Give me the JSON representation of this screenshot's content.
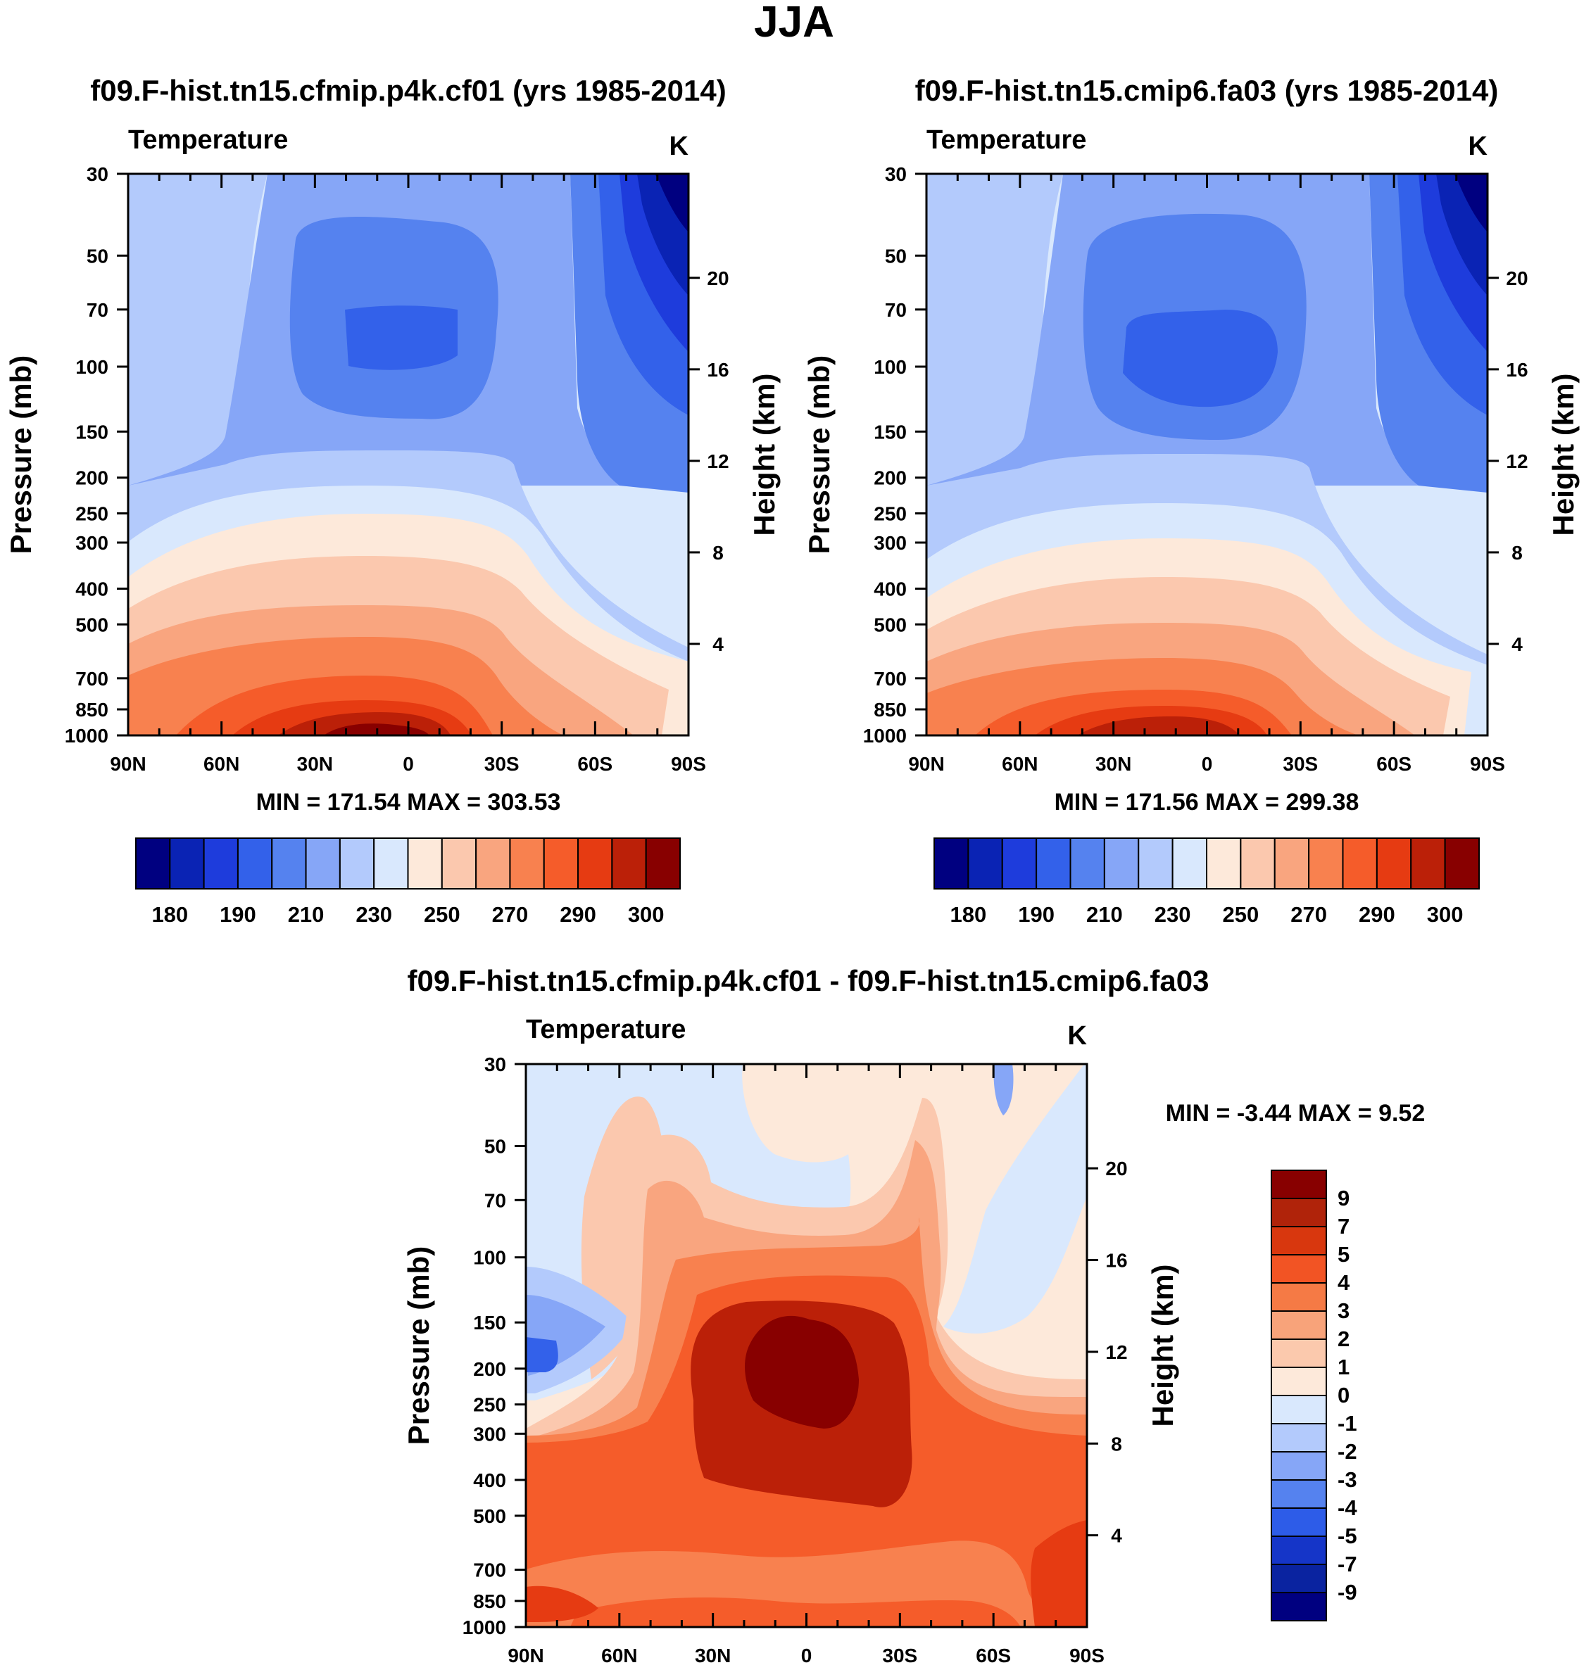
{
  "figure_title": "JJA",
  "panels": [
    {
      "id": "left",
      "title": "f09.F-hist.tn15.cfmip.p4k.cf01 (yrs 1985-2014)",
      "field_label": "Temperature",
      "units_label": "K",
      "min_max_text": "MIN = 171.54  MAX = 303.53"
    },
    {
      "id": "right",
      "title": "f09.F-hist.tn15.cmip6.fa03 (yrs 1985-2014)",
      "field_label": "Temperature",
      "units_label": "K",
      "min_max_text": "MIN = 171.56  MAX = 299.38"
    },
    {
      "id": "diff",
      "title": "f09.F-hist.tn15.cfmip.p4k.cf01 - f09.F-hist.tn15.cmip6.fa03",
      "field_label": "Temperature",
      "units_label": "K",
      "min_max_text": "MIN =  -3.44  MAX =   9.52"
    }
  ],
  "axes": {
    "ylabel_left": "Pressure (mb)",
    "ylabel_right": "Height (km)",
    "pressure_ticks": [
      "30",
      "50",
      "70",
      "100",
      "150",
      "200",
      "250",
      "300",
      "400",
      "500",
      "700",
      "850",
      "1000"
    ],
    "height_ticks": [
      "20",
      "16",
      "12",
      "8",
      "4"
    ],
    "lat_ticks": [
      "90N",
      "60N",
      "30N",
      "0",
      "30S",
      "60S",
      "90S"
    ]
  },
  "chart_data": [
    {
      "type": "heatmap",
      "title": "f09.F-hist.tn15.cfmip.p4k.cf01 (yrs 1985-2014)",
      "variable": "Temperature",
      "units": "K",
      "x": [
        "90N",
        "60N",
        "30N",
        "0",
        "30S",
        "60S",
        "90S"
      ],
      "y_pressure_mb": [
        30,
        50,
        70,
        100,
        150,
        200,
        250,
        300,
        400,
        500,
        700,
        850,
        1000
      ],
      "y_height_km": [
        20,
        16,
        12,
        8,
        4
      ],
      "min": 171.54,
      "max": 303.53,
      "colorbar_ticks": [
        "180",
        "190",
        "210",
        "230",
        "250",
        "270",
        "290",
        "300"
      ],
      "colorbar_colors": [
        "#000080",
        "#0a23b4",
        "#1e3cdc",
        "#3361ea",
        "#5582ef",
        "#86a6f7",
        "#b3cafc",
        "#d9e8fd",
        "#fde9da",
        "#fbc8ae",
        "#f9a57f",
        "#f8814f",
        "#f55c2a",
        "#e63b12",
        "#bb2008",
        "#880000"
      ]
    },
    {
      "type": "heatmap",
      "title": "f09.F-hist.tn15.cmip6.fa03 (yrs 1985-2014)",
      "variable": "Temperature",
      "units": "K",
      "x": [
        "90N",
        "60N",
        "30N",
        "0",
        "30S",
        "60S",
        "90S"
      ],
      "y_pressure_mb": [
        30,
        50,
        70,
        100,
        150,
        200,
        250,
        300,
        400,
        500,
        700,
        850,
        1000
      ],
      "y_height_km": [
        20,
        16,
        12,
        8,
        4
      ],
      "min": 171.56,
      "max": 299.38,
      "colorbar_ticks": [
        "180",
        "190",
        "210",
        "230",
        "250",
        "270",
        "290",
        "300"
      ],
      "colorbar_colors": [
        "#000080",
        "#0a23b4",
        "#1e3cdc",
        "#3361ea",
        "#5582ef",
        "#86a6f7",
        "#b3cafc",
        "#d9e8fd",
        "#fde9da",
        "#fbc8ae",
        "#f9a57f",
        "#f8814f",
        "#f55c2a",
        "#e63b12",
        "#bb2008",
        "#880000"
      ]
    },
    {
      "type": "heatmap",
      "title": "f09.F-hist.tn15.cfmip.p4k.cf01 - f09.F-hist.tn15.cmip6.fa03",
      "variable": "Temperature",
      "units": "K",
      "x": [
        "90N",
        "60N",
        "30N",
        "0",
        "30S",
        "60S",
        "90S"
      ],
      "y_pressure_mb": [
        30,
        50,
        70,
        100,
        150,
        200,
        250,
        300,
        400,
        500,
        700,
        850,
        1000
      ],
      "y_height_km": [
        20,
        16,
        12,
        8,
        4
      ],
      "min": -3.44,
      "max": 9.52,
      "colorbar_ticks": [
        "9",
        "7",
        "5",
        "4",
        "3",
        "2",
        "1",
        "0",
        "-1",
        "-2",
        "-3",
        "-4",
        "-5",
        "-7",
        "-9"
      ],
      "colorbar_colors": [
        "#880000",
        "#b0230a",
        "#d8370e",
        "#f25424",
        "#f57a45",
        "#f8a37a",
        "#fbc9ad",
        "#fde9da",
        "#d9e8fd",
        "#b3cafc",
        "#86a6f7",
        "#5582ef",
        "#2d5ce8",
        "#1535c8",
        "#0a23a0",
        "#000080"
      ]
    }
  ]
}
